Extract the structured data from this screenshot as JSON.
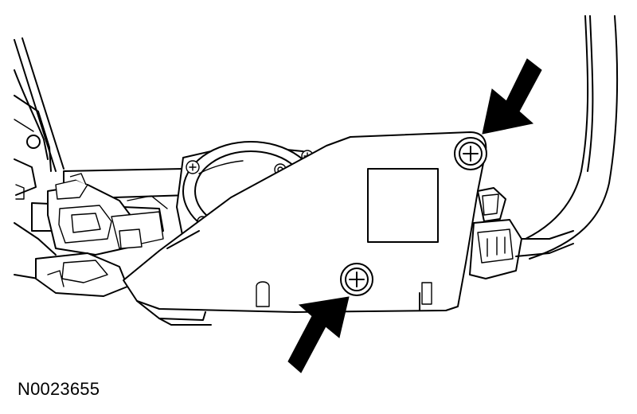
{
  "figure": {
    "reference_id": "N0023655",
    "colors": {
      "line": "#000000",
      "background": "#ffffff"
    }
  }
}
